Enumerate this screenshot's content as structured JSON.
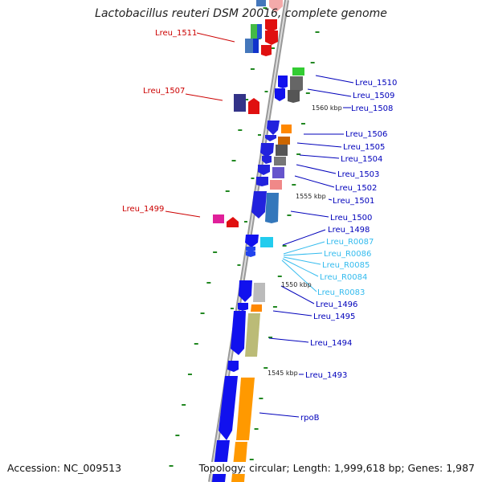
{
  "title": "Lactobacillus reuteri DSM 20016, complete genome",
  "footer": {
    "accession": "Accession: NC_009513",
    "summary": "Topology: circular; Length: 1,999,618 bp; Genes: 1,987"
  },
  "colors": {
    "label_left": "#cc0000",
    "label_right": "#0000bb",
    "label_rna": "#33bbee",
    "tick": "#228822",
    "backbone": "#888888"
  },
  "position_markers": [
    "1560 kbp",
    "1555 kbp",
    "1550 kbp",
    "1545 kbp"
  ],
  "gene_labels_left": [
    "Lreu_1511",
    "Lreu_1507",
    "Lreu_1499"
  ],
  "gene_labels_right": [
    "Lreu_1510",
    "Lreu_1509",
    "Lreu_1508",
    "Lreu_1506",
    "Lreu_1505",
    "Lreu_1504",
    "Lreu_1503",
    "Lreu_1502",
    "Lreu_1501",
    "Lreu_1500",
    "Lreu_1498",
    "Lreu_R0087",
    "Lreu_R0086",
    "Lreu_R0085",
    "Lreu_R0084",
    "Lreu_R0083",
    "Lreu_1496",
    "Lreu_1495",
    "Lreu_1494",
    "Lreu_1493",
    "rpoB"
  ]
}
